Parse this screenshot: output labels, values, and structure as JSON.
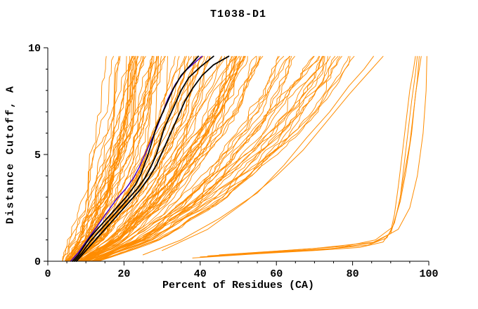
{
  "chart_data": {
    "type": "line",
    "title": "T1038-D1",
    "xlabel": "Percent of Residues (CA)",
    "ylabel": "Distance Cutoff, A",
    "xlim": [
      0,
      100
    ],
    "ylim": [
      0,
      10
    ],
    "xticks": {
      "major": [
        0,
        20,
        40,
        60,
        80,
        100
      ],
      "minor_step": 5
    },
    "yticks": {
      "major": [
        0,
        5,
        10
      ],
      "minor_step": 1
    },
    "grid": false,
    "legend": "none",
    "colors": {
      "ensemble": "#ff8c00",
      "highlight": "#000000",
      "secondary_highlight": "#4400cc",
      "axis": "#000000",
      "background": "#ffffff"
    },
    "ensemble": {
      "name": "server-model-curves",
      "count": 105,
      "seed": 7,
      "y_step": 0.2,
      "y_max": 9.6,
      "envelope": [
        [
          0,
          4.5,
          13
        ],
        [
          0.5,
          6,
          21
        ],
        [
          1,
          7.5,
          29
        ],
        [
          1.5,
          8.5,
          34
        ],
        [
          2,
          9.5,
          38
        ],
        [
          2.5,
          10.5,
          43
        ],
        [
          3,
          11.5,
          47
        ],
        [
          3.5,
          12.2,
          50.5
        ],
        [
          4,
          13,
          54
        ],
        [
          5,
          14.5,
          60
        ],
        [
          6,
          15.8,
          66
        ],
        [
          7,
          16.8,
          71
        ],
        [
          8,
          17.6,
          75
        ],
        [
          9,
          18.4,
          79
        ],
        [
          9.6,
          19,
          81
        ]
      ]
    },
    "explicit_series": [
      {
        "name": "orange-sparse-1",
        "color": "#ff8c00",
        "width": 1,
        "points": [
          [
            25,
            0.3
          ],
          [
            35,
            1
          ],
          [
            45,
            2
          ],
          [
            55,
            3.2
          ],
          [
            62,
            4.5
          ],
          [
            68,
            5.8
          ],
          [
            74,
            7
          ],
          [
            79,
            8.2
          ],
          [
            83,
            9
          ],
          [
            85.5,
            9.6
          ]
        ]
      },
      {
        "name": "orange-sparse-2",
        "color": "#ff8c00",
        "width": 1,
        "points": [
          [
            30,
            0.5
          ],
          [
            42,
            1.5
          ],
          [
            52,
            2.8
          ],
          [
            60,
            4
          ],
          [
            67,
            5.2
          ],
          [
            73,
            6.5
          ],
          [
            79,
            7.8
          ],
          [
            84,
            8.8
          ],
          [
            88,
            9.6
          ]
        ]
      },
      {
        "name": "orange-outlier-1",
        "color": "#ff8c00",
        "width": 1,
        "points": [
          [
            38,
            0.15
          ],
          [
            55,
            0.35
          ],
          [
            70,
            0.5
          ],
          [
            82,
            0.65
          ],
          [
            88,
            0.9
          ],
          [
            90,
            1.4
          ],
          [
            91,
            2.2
          ],
          [
            92,
            3.5
          ],
          [
            93,
            5
          ],
          [
            94,
            6.5
          ],
          [
            95,
            8
          ],
          [
            96,
            9
          ],
          [
            96.5,
            9.6
          ]
        ]
      },
      {
        "name": "orange-outlier-2",
        "color": "#ff8c00",
        "width": 1,
        "points": [
          [
            40,
            0.2
          ],
          [
            58,
            0.4
          ],
          [
            72,
            0.55
          ],
          [
            84,
            0.75
          ],
          [
            89,
            1.1
          ],
          [
            91,
            1.8
          ],
          [
            92.5,
            3
          ],
          [
            93.5,
            4.5
          ],
          [
            94.5,
            6
          ],
          [
            95.5,
            7.5
          ],
          [
            96.5,
            8.8
          ],
          [
            97,
            9.6
          ]
        ]
      },
      {
        "name": "orange-outlier-3",
        "color": "#ff8c00",
        "width": 1,
        "points": [
          [
            42,
            0.25
          ],
          [
            60,
            0.45
          ],
          [
            75,
            0.6
          ],
          [
            85,
            0.85
          ],
          [
            90,
            1.3
          ],
          [
            92,
            2.5
          ],
          [
            93.5,
            4
          ],
          [
            95,
            5.5
          ],
          [
            96,
            7
          ],
          [
            97,
            8.5
          ],
          [
            97.5,
            9.6
          ]
        ]
      },
      {
        "name": "orange-outlier-4",
        "color": "#ff8c00",
        "width": 1,
        "points": [
          [
            45,
            0.3
          ],
          [
            62,
            0.5
          ],
          [
            78,
            0.7
          ],
          [
            86,
            1
          ],
          [
            90.5,
            1.6
          ],
          [
            92.5,
            2.8
          ],
          [
            94,
            4.2
          ],
          [
            95.5,
            6
          ],
          [
            96.5,
            7.8
          ],
          [
            98,
            9.6
          ]
        ]
      },
      {
        "name": "orange-outlier-5",
        "color": "#ff8c00",
        "width": 1,
        "points": [
          [
            50,
            0.35
          ],
          [
            70,
            0.6
          ],
          [
            86,
            0.9
          ],
          [
            92,
            1.5
          ],
          [
            95,
            2.5
          ],
          [
            97,
            4
          ],
          [
            98.5,
            6
          ],
          [
            99.3,
            8
          ],
          [
            99.5,
            9.6
          ]
        ]
      },
      {
        "name": "model-highlight-blue",
        "color": "#4400cc",
        "width": 1.5,
        "points": [
          [
            6,
            0
          ],
          [
            8,
            0.4
          ],
          [
            10,
            0.9
          ],
          [
            12,
            1.4
          ],
          [
            14,
            1.9
          ],
          [
            16,
            2.4
          ],
          [
            18,
            2.9
          ],
          [
            20.5,
            3.4
          ],
          [
            22.5,
            3.9
          ],
          [
            24,
            4.4
          ],
          [
            25.5,
            5
          ],
          [
            27,
            5.6
          ],
          [
            28.5,
            6.2
          ],
          [
            30,
            6.9
          ],
          [
            31.5,
            7.6
          ],
          [
            33.5,
            8.3
          ],
          [
            36,
            8.9
          ],
          [
            38.5,
            9.3
          ],
          [
            40.5,
            9.6
          ]
        ]
      },
      {
        "name": "model-highlight-black-1",
        "color": "#000000",
        "width": 1.8,
        "points": [
          [
            6.5,
            0
          ],
          [
            8,
            0.3
          ],
          [
            9.5,
            0.7
          ],
          [
            11,
            1.1
          ],
          [
            13,
            1.5
          ],
          [
            15,
            1.9
          ],
          [
            17,
            2.3
          ],
          [
            19,
            2.7
          ],
          [
            21,
            3.1
          ],
          [
            23,
            3.6
          ],
          [
            24.5,
            4.1
          ],
          [
            25.5,
            4.6
          ],
          [
            26.5,
            5.1
          ],
          [
            27.5,
            5.7
          ],
          [
            28.5,
            6.3
          ],
          [
            30,
            6.9
          ],
          [
            31.5,
            7.5
          ],
          [
            33,
            8.1
          ],
          [
            35,
            8.7
          ],
          [
            37.5,
            9.2
          ],
          [
            39.5,
            9.6
          ]
        ]
      },
      {
        "name": "model-highlight-black-2",
        "color": "#000000",
        "width": 1.8,
        "points": [
          [
            7,
            0
          ],
          [
            9,
            0.4
          ],
          [
            11,
            0.9
          ],
          [
            13.5,
            1.4
          ],
          [
            16,
            1.9
          ],
          [
            18.5,
            2.4
          ],
          [
            21,
            2.9
          ],
          [
            23.5,
            3.4
          ],
          [
            25.5,
            3.9
          ],
          [
            27,
            4.4
          ],
          [
            28.5,
            5
          ],
          [
            29.5,
            5.6
          ],
          [
            30.5,
            6.2
          ],
          [
            32,
            6.8
          ],
          [
            33.5,
            7.4
          ],
          [
            35,
            8
          ],
          [
            37,
            8.6
          ],
          [
            40,
            9.1
          ],
          [
            43.5,
            9.6
          ]
        ]
      },
      {
        "name": "model-highlight-black-3",
        "color": "#000000",
        "width": 1.8,
        "points": [
          [
            7.5,
            0
          ],
          [
            10,
            0.5
          ],
          [
            12.5,
            1
          ],
          [
            15.5,
            1.6
          ],
          [
            18,
            2.1
          ],
          [
            21,
            2.7
          ],
          [
            24,
            3.3
          ],
          [
            26.5,
            3.9
          ],
          [
            28.5,
            4.5
          ],
          [
            30,
            5.1
          ],
          [
            31.5,
            5.7
          ],
          [
            33,
            6.3
          ],
          [
            34.5,
            6.9
          ],
          [
            36,
            7.5
          ],
          [
            38,
            8.1
          ],
          [
            40.5,
            8.7
          ],
          [
            43.5,
            9.2
          ],
          [
            47.5,
            9.6
          ]
        ]
      }
    ]
  }
}
